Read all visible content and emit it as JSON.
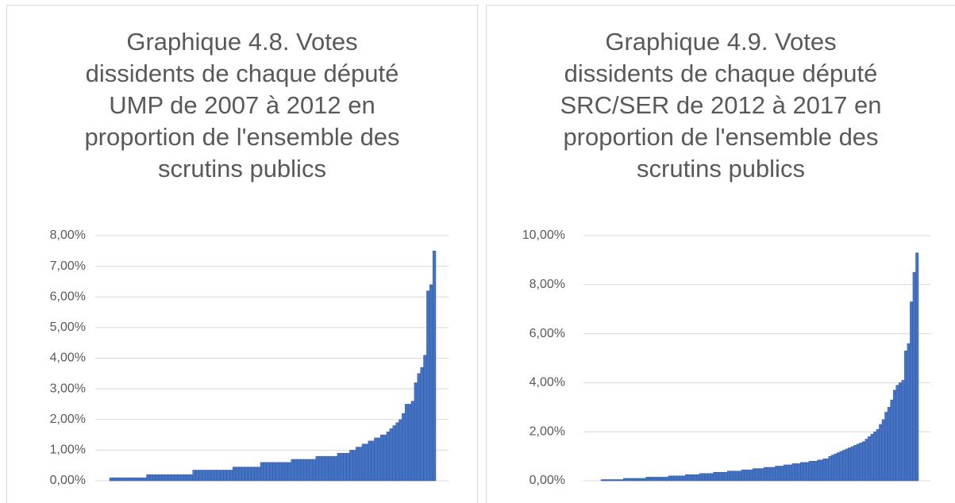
{
  "chart_data": [
    {
      "type": "bar",
      "title": "Graphique 4.8. Votes dissidents de chaque député UMP de 2007 à 2012 en proportion de l'ensemble des scrutins publics",
      "color": "#4472c4",
      "grid": true,
      "ylim": [
        0,
        8
      ],
      "yticks": [
        {
          "value": 0,
          "label": "0,00%"
        },
        {
          "value": 1,
          "label": "1,00%"
        },
        {
          "value": 2,
          "label": "2,00%"
        },
        {
          "value": 3,
          "label": "3,00%"
        },
        {
          "value": 4,
          "label": "4,00%"
        },
        {
          "value": 5,
          "label": "5,00%"
        },
        {
          "value": 6,
          "label": "6,00%"
        },
        {
          "value": 7,
          "label": "7,00%"
        },
        {
          "value": 8,
          "label": "8,00%"
        }
      ],
      "categories": [
        null,
        null,
        null,
        null,
        null,
        null,
        null,
        null,
        null,
        null,
        null,
        null,
        null,
        null,
        null,
        null,
        null,
        null,
        null,
        null,
        null,
        null,
        null,
        null,
        null,
        null,
        null,
        null,
        null,
        null,
        null,
        null,
        null,
        null,
        null,
        null,
        null,
        null,
        null,
        null,
        null,
        null,
        null,
        null,
        null,
        null,
        null,
        null,
        null,
        null,
        null,
        null,
        null,
        null,
        null,
        null,
        null,
        null,
        null,
        null,
        null,
        null,
        null,
        null,
        null,
        null,
        null,
        null,
        null,
        null,
        null,
        null,
        null,
        null,
        null,
        null,
        null,
        null,
        null,
        null,
        null,
        null,
        null,
        null,
        null,
        null,
        null,
        null,
        null,
        null,
        null,
        null,
        null,
        null,
        null,
        null,
        null,
        null,
        null,
        null,
        null,
        null,
        null,
        null,
        null,
        null
      ],
      "values": [
        0.1,
        0.1,
        0.1,
        0.1,
        0.1,
        0.1,
        0.1,
        0.1,
        0.1,
        0.1,
        0.1,
        0.1,
        0.2,
        0.2,
        0.2,
        0.2,
        0.2,
        0.2,
        0.2,
        0.2,
        0.2,
        0.2,
        0.2,
        0.2,
        0.2,
        0.2,
        0.2,
        0.35,
        0.35,
        0.35,
        0.35,
        0.35,
        0.35,
        0.35,
        0.35,
        0.35,
        0.35,
        0.35,
        0.35,
        0.35,
        0.45,
        0.45,
        0.45,
        0.45,
        0.45,
        0.45,
        0.45,
        0.45,
        0.45,
        0.6,
        0.6,
        0.6,
        0.6,
        0.6,
        0.6,
        0.6,
        0.6,
        0.6,
        0.6,
        0.7,
        0.7,
        0.7,
        0.7,
        0.7,
        0.7,
        0.7,
        0.7,
        0.8,
        0.8,
        0.8,
        0.8,
        0.8,
        0.8,
        0.8,
        0.9,
        0.9,
        0.9,
        0.9,
        1.0,
        1.0,
        1.1,
        1.1,
        1.2,
        1.2,
        1.3,
        1.3,
        1.4,
        1.4,
        1.5,
        1.5,
        1.6,
        1.7,
        1.8,
        1.9,
        2.0,
        2.2,
        2.5,
        2.5,
        2.6,
        3.2,
        3.5,
        3.7,
        4.1,
        6.2,
        6.4,
        7.5
      ]
    },
    {
      "type": "bar",
      "title": "Graphique 4.9. Votes dissidents de chaque député SRC/SER de 2012 à 2017 en proportion de l'ensemble des scrutins publics",
      "color": "#4472c4",
      "grid": true,
      "ylim": [
        0,
        10
      ],
      "yticks": [
        {
          "value": 0,
          "label": "0,00%"
        },
        {
          "value": 2,
          "label": "2,00%"
        },
        {
          "value": 4,
          "label": "4,00%"
        },
        {
          "value": 6,
          "label": "6,00%"
        },
        {
          "value": 8,
          "label": "8,00%"
        },
        {
          "value": 10,
          "label": "10,00%"
        }
      ],
      "categories": [
        null,
        null,
        null,
        null,
        null,
        null,
        null,
        null,
        null,
        null,
        null,
        null,
        null,
        null,
        null,
        null,
        null,
        null,
        null,
        null,
        null,
        null,
        null,
        null,
        null,
        null,
        null,
        null,
        null,
        null,
        null,
        null,
        null,
        null,
        null,
        null,
        null,
        null,
        null,
        null,
        null,
        null,
        null,
        null,
        null,
        null,
        null,
        null,
        null,
        null,
        null,
        null,
        null,
        null,
        null,
        null,
        null,
        null,
        null,
        null,
        null,
        null,
        null,
        null,
        null,
        null,
        null,
        null,
        null,
        null,
        null,
        null,
        null,
        null,
        null,
        null,
        null,
        null,
        null,
        null,
        null,
        null,
        null,
        null,
        null,
        null,
        null,
        null,
        null,
        null,
        null,
        null,
        null,
        null,
        null,
        null,
        null,
        null,
        null,
        null,
        null,
        null,
        null,
        null,
        null,
        null,
        null,
        null,
        null,
        null,
        null,
        null,
        null
      ],
      "values": [
        0.05,
        0.05,
        0.05,
        0.05,
        0.05,
        0.05,
        0.05,
        0.05,
        0.1,
        0.1,
        0.1,
        0.1,
        0.1,
        0.1,
        0.1,
        0.1,
        0.15,
        0.15,
        0.15,
        0.15,
        0.15,
        0.15,
        0.15,
        0.15,
        0.2,
        0.2,
        0.2,
        0.2,
        0.2,
        0.2,
        0.25,
        0.25,
        0.25,
        0.25,
        0.25,
        0.3,
        0.3,
        0.3,
        0.3,
        0.3,
        0.35,
        0.35,
        0.35,
        0.35,
        0.35,
        0.4,
        0.4,
        0.4,
        0.4,
        0.4,
        0.45,
        0.45,
        0.45,
        0.45,
        0.5,
        0.5,
        0.5,
        0.5,
        0.55,
        0.55,
        0.55,
        0.55,
        0.6,
        0.6,
        0.6,
        0.65,
        0.65,
        0.65,
        0.7,
        0.7,
        0.7,
        0.75,
        0.75,
        0.75,
        0.8,
        0.8,
        0.8,
        0.85,
        0.85,
        0.9,
        0.9,
        1.0,
        1.05,
        1.1,
        1.15,
        1.2,
        1.25,
        1.3,
        1.35,
        1.4,
        1.45,
        1.5,
        1.55,
        1.6,
        1.7,
        1.8,
        1.9,
        2.0,
        2.1,
        2.3,
        2.5,
        2.8,
        3.0,
        3.3,
        3.7,
        3.9,
        4.0,
        4.1,
        5.3,
        5.6,
        7.3,
        8.5,
        9.3
      ]
    }
  ]
}
